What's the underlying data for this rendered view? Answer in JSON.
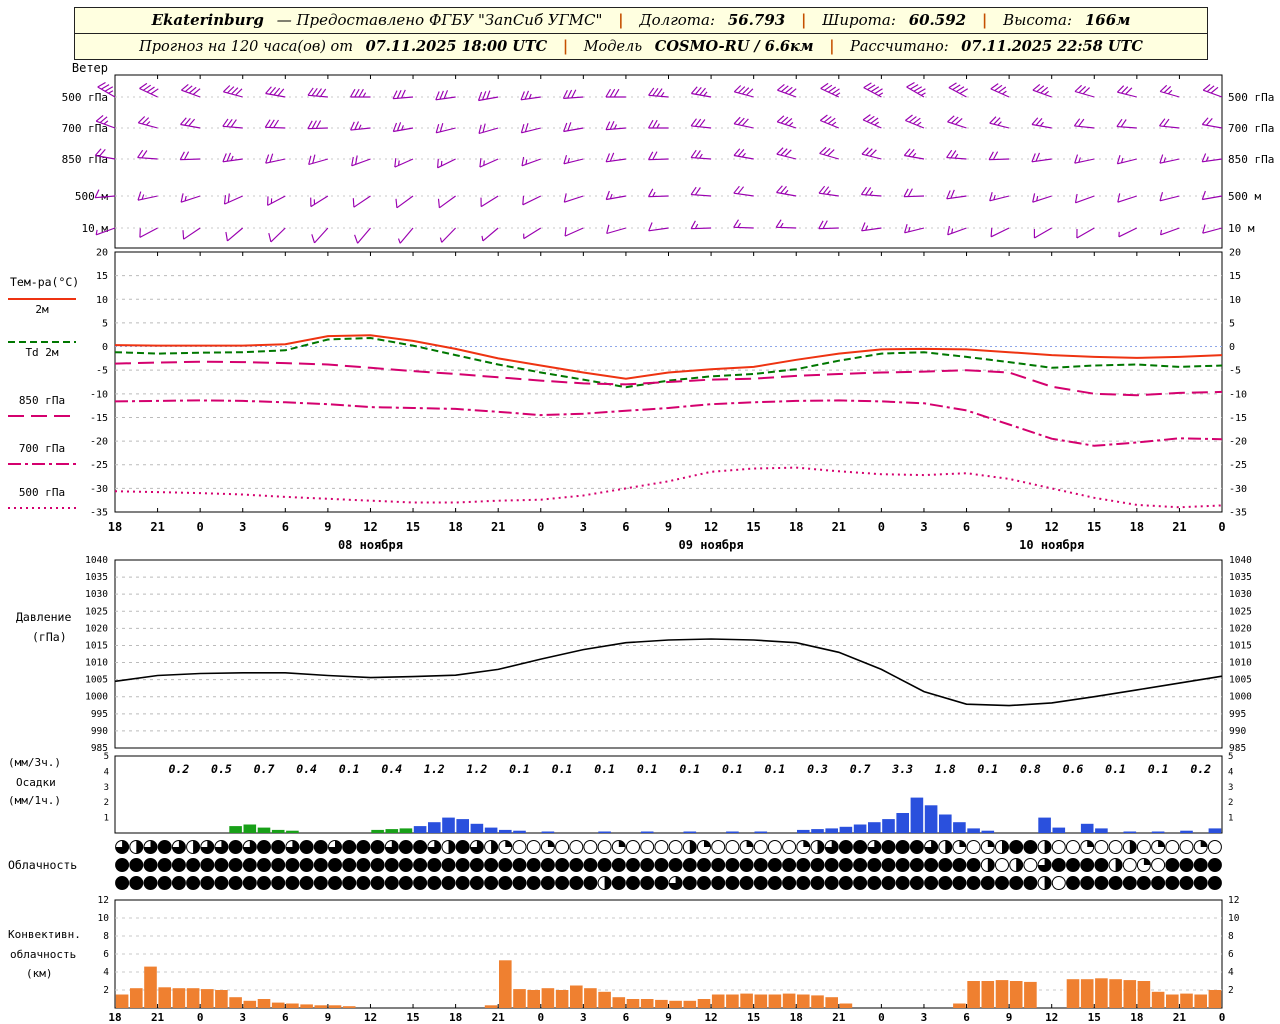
{
  "header": {
    "station": "Ekaterinburg",
    "provider": "— Предоставлено ФГБУ \"ЗапСиб УГМС\"",
    "sep": "|",
    "lon_label": "Долгота:",
    "lon": "56.793",
    "lat_label": "Широта:",
    "lat": "60.592",
    "alt_label": "Высота:",
    "alt": "166м",
    "forecast_label": "Прогноз на 120 часа(ов) от",
    "run_time": "07.11.2025 18:00 UTC",
    "model_label": "Модель",
    "model": "COSMO-RU / 6.6км",
    "calc_label": "Рассчитано:",
    "calc_time": "07.11.2025 22:58 UTC"
  },
  "panels": {
    "wind": {
      "title": "Ветер",
      "levels": [
        "500 гПа",
        "700 гПа",
        "850 гПа",
        "500 м",
        "10 м"
      ]
    },
    "temperature": {
      "title": "Тем-ра(°C)",
      "legend": [
        "2м",
        "Td 2м",
        "850 гПа",
        "700 гПа",
        "500 гПа"
      ]
    },
    "pressure": {
      "title_line1": "Давление",
      "title_line2": "(гПа)"
    },
    "precipitation": {
      "label1": "(мм/3ч.)",
      "label2": "Осадки",
      "label3": "(мм/1ч.)"
    },
    "cloud": {
      "title": "Облачность"
    },
    "convective": {
      "l1": "Конвективн.",
      "l2": "облачность",
      "l3": "(км)"
    }
  },
  "axis": {
    "hours": [
      "18",
      "21",
      "0",
      "3",
      "6",
      "9",
      "12",
      "15",
      "18",
      "21",
      "0",
      "3",
      "6",
      "9",
      "12",
      "15",
      "18",
      "21",
      "0",
      "3",
      "6",
      "9",
      "12",
      "15",
      "18",
      "21",
      "0"
    ],
    "dates": [
      "08 ноября",
      "09 ноября",
      "10 ноября"
    ]
  },
  "chart_data": [
    {
      "type": "wind-barbs",
      "title": "Ветер",
      "time_step_h": 3,
      "levels": [
        {
          "name": "500 гПа",
          "dir": [
            300,
            295,
            290,
            285,
            280,
            275,
            270,
            265,
            262,
            260,
            262,
            266,
            270,
            275,
            280,
            285,
            290,
            295,
            298,
            300,
            298,
            294,
            290,
            286,
            284,
            286,
            290
          ],
          "spd": [
            35,
            38,
            40,
            42,
            40,
            38,
            35,
            32,
            30,
            28,
            27,
            28,
            30,
            33,
            36,
            40,
            42,
            44,
            45,
            43,
            40,
            36,
            33,
            30,
            28,
            27,
            28
          ]
        },
        {
          "name": "700 гПа",
          "dir": [
            290,
            285,
            280,
            275,
            272,
            268,
            264,
            260,
            256,
            254,
            256,
            260,
            265,
            270,
            276,
            282,
            288,
            292,
            294,
            292,
            288,
            284,
            280,
            276,
            274,
            276,
            280
          ],
          "spd": [
            25,
            27,
            30,
            32,
            30,
            28,
            26,
            24,
            22,
            20,
            20,
            22,
            24,
            26,
            29,
            32,
            34,
            36,
            35,
            33,
            30,
            27,
            24,
            22,
            20,
            20,
            22
          ]
        },
        {
          "name": "850 гПа",
          "dir": [
            280,
            274,
            268,
            262,
            258,
            254,
            250,
            246,
            244,
            246,
            250,
            256,
            262,
            268,
            274,
            280,
            284,
            286,
            284,
            280,
            274,
            268,
            262,
            258,
            256,
            258,
            262
          ],
          "spd": [
            18,
            20,
            22,
            24,
            22,
            20,
            18,
            16,
            15,
            14,
            15,
            16,
            18,
            20,
            23,
            26,
            28,
            30,
            28,
            26,
            23,
            20,
            18,
            16,
            15,
            15,
            16
          ]
        },
        {
          "name": "500 м",
          "dir": [
            265,
            258,
            252,
            246,
            242,
            238,
            236,
            234,
            234,
            238,
            244,
            252,
            260,
            268,
            274,
            278,
            280,
            278,
            274,
            268,
            262,
            256,
            252,
            250,
            252,
            256,
            260
          ],
          "spd": [
            12,
            14,
            16,
            18,
            16,
            14,
            12,
            10,
            9,
            9,
            10,
            12,
            14,
            16,
            18,
            21,
            24,
            26,
            24,
            21,
            18,
            15,
            13,
            11,
            10,
            10,
            12
          ]
        },
        {
          "name": "10 м",
          "dir": [
            250,
            242,
            236,
            230,
            226,
            222,
            220,
            220,
            224,
            230,
            238,
            246,
            254,
            262,
            268,
            272,
            272,
            268,
            262,
            256,
            250,
            244,
            240,
            240,
            244,
            250,
            255
          ],
          "spd": [
            7,
            8,
            10,
            11,
            10,
            9,
            8,
            6,
            5,
            5,
            6,
            8,
            9,
            11,
            13,
            15,
            17,
            18,
            17,
            15,
            13,
            11,
            9,
            8,
            7,
            7,
            8
          ]
        }
      ]
    },
    {
      "type": "line",
      "title": "Тем-ра(°C)",
      "ylim": [
        -35,
        20
      ],
      "x_step_h": 3,
      "series": [
        {
          "name": "2м",
          "color": "#ee3311",
          "style": "solid",
          "values": [
            0.3,
            0.2,
            0.2,
            0.2,
            0.5,
            2.2,
            2.4,
            1.2,
            -0.5,
            -2.5,
            -4.0,
            -5.5,
            -6.8,
            -5.5,
            -4.8,
            -4.3,
            -2.8,
            -1.5,
            -0.6,
            -0.5,
            -0.6,
            -1.2,
            -1.8,
            -2.2,
            -2.4,
            -2.2,
            -1.8
          ]
        },
        {
          "name": "Td 2м",
          "color": "#007700",
          "style": "dashed",
          "values": [
            -1.2,
            -1.5,
            -1.3,
            -1.2,
            -0.8,
            1.5,
            1.8,
            0.2,
            -1.8,
            -3.8,
            -5.5,
            -7.0,
            -8.6,
            -7.2,
            -6.3,
            -5.8,
            -4.8,
            -3.0,
            -1.5,
            -1.2,
            -2.2,
            -3.3,
            -4.5,
            -4.0,
            -3.8,
            -4.3,
            -4.0
          ]
        },
        {
          "name": "850 гПа",
          "color": "#d4006e",
          "style": "longdash",
          "values": [
            -3.6,
            -3.4,
            -3.2,
            -3.3,
            -3.5,
            -3.8,
            -4.5,
            -5.2,
            -5.8,
            -6.5,
            -7.2,
            -7.8,
            -8.0,
            -7.5,
            -7.0,
            -6.8,
            -6.2,
            -5.8,
            -5.5,
            -5.3,
            -5.0,
            -5.5,
            -8.5,
            -10.0,
            -10.3,
            -9.8,
            -9.6
          ]
        },
        {
          "name": "700 гПа",
          "color": "#d4006e",
          "style": "dashdot",
          "values": [
            -11.6,
            -11.5,
            -11.4,
            -11.5,
            -11.8,
            -12.2,
            -12.8,
            -13.0,
            -13.2,
            -13.8,
            -14.5,
            -14.2,
            -13.6,
            -13.0,
            -12.2,
            -11.8,
            -11.5,
            -11.4,
            -11.6,
            -12.0,
            -13.5,
            -16.5,
            -19.5,
            -21.0,
            -20.3,
            -19.4,
            -19.6
          ]
        },
        {
          "name": "500 гПа",
          "color": "#d4006e",
          "style": "dotted",
          "values": [
            -30.6,
            -30.8,
            -31.0,
            -31.3,
            -31.8,
            -32.2,
            -32.6,
            -33.0,
            -33.0,
            -32.6,
            -32.4,
            -31.5,
            -30.0,
            -28.5,
            -26.5,
            -25.8,
            -25.6,
            -26.4,
            -27.0,
            -27.2,
            -26.8,
            -28.0,
            -30.0,
            -32.0,
            -33.5,
            -34.0,
            -33.6
          ]
        }
      ]
    },
    {
      "type": "line",
      "title": "Давление (гПа)",
      "ylim": [
        985,
        1040
      ],
      "x_step_h": 3,
      "series": [
        {
          "name": "Давление",
          "color": "#000000",
          "style": "solid",
          "values": [
            1004.5,
            1006.2,
            1006.8,
            1007.0,
            1007.0,
            1006.2,
            1005.6,
            1005.9,
            1006.3,
            1008.0,
            1011.0,
            1013.8,
            1015.8,
            1016.6,
            1016.9,
            1016.6,
            1015.8,
            1013.0,
            1008.0,
            1001.5,
            997.8,
            997.4,
            998.2,
            1000.0,
            1002.0,
            1004.0,
            1006.0
          ]
        }
      ]
    },
    {
      "type": "bar",
      "title": "Осадки",
      "ylim": [
        0,
        5
      ],
      "sums_3h": [
        "",
        "0.2",
        "0.5",
        "0.7",
        "0.4",
        "0.1",
        "0.4",
        "1.2",
        "1.2",
        "0.1",
        "0.1",
        "0.1",
        "0.1",
        "0.1",
        "0.1",
        "0.1",
        "0.3",
        "0.7",
        "3.3",
        "1.8",
        "0.1",
        "0.8",
        "0.6",
        "0.1",
        "0.1",
        "0.2"
      ],
      "colors": {
        "g": "#18a018",
        "b": "#2a50dd"
      },
      "bars_1h": [
        {
          "h": 8,
          "v": 0.45,
          "c": "g"
        },
        {
          "h": 9,
          "v": 0.55,
          "c": "g"
        },
        {
          "h": 10,
          "v": 0.35,
          "c": "g"
        },
        {
          "h": 11,
          "v": 0.2,
          "c": "g"
        },
        {
          "h": 12,
          "v": 0.15,
          "c": "g"
        },
        {
          "h": 18,
          "v": 0.2,
          "c": "g"
        },
        {
          "h": 19,
          "v": 0.25,
          "c": "g"
        },
        {
          "h": 20,
          "v": 0.3,
          "c": "g"
        },
        {
          "h": 21,
          "v": 0.45,
          "c": "b"
        },
        {
          "h": 22,
          "v": 0.7,
          "c": "b"
        },
        {
          "h": 23,
          "v": 1.0,
          "c": "b"
        },
        {
          "h": 24,
          "v": 0.9,
          "c": "b"
        },
        {
          "h": 25,
          "v": 0.6,
          "c": "b"
        },
        {
          "h": 26,
          "v": 0.35,
          "c": "b"
        },
        {
          "h": 27,
          "v": 0.2,
          "c": "b"
        },
        {
          "h": 28,
          "v": 0.15,
          "c": "b"
        },
        {
          "h": 30,
          "v": 0.1,
          "c": "b"
        },
        {
          "h": 34,
          "v": 0.1,
          "c": "b"
        },
        {
          "h": 37,
          "v": 0.1,
          "c": "b"
        },
        {
          "h": 40,
          "v": 0.1,
          "c": "b"
        },
        {
          "h": 43,
          "v": 0.1,
          "c": "b"
        },
        {
          "h": 45,
          "v": 0.1,
          "c": "b"
        },
        {
          "h": 48,
          "v": 0.2,
          "c": "b"
        },
        {
          "h": 49,
          "v": 0.25,
          "c": "b"
        },
        {
          "h": 50,
          "v": 0.3,
          "c": "b"
        },
        {
          "h": 51,
          "v": 0.4,
          "c": "b"
        },
        {
          "h": 52,
          "v": 0.55,
          "c": "b"
        },
        {
          "h": 53,
          "v": 0.7,
          "c": "b"
        },
        {
          "h": 54,
          "v": 0.9,
          "c": "b"
        },
        {
          "h": 55,
          "v": 1.3,
          "c": "b"
        },
        {
          "h": 56,
          "v": 2.3,
          "c": "b"
        },
        {
          "h": 57,
          "v": 1.8,
          "c": "b"
        },
        {
          "h": 58,
          "v": 1.2,
          "c": "b"
        },
        {
          "h": 59,
          "v": 0.7,
          "c": "b"
        },
        {
          "h": 60,
          "v": 0.3,
          "c": "b"
        },
        {
          "h": 61,
          "v": 0.15,
          "c": "b"
        },
        {
          "h": 65,
          "v": 1.0,
          "c": "b"
        },
        {
          "h": 66,
          "v": 0.35,
          "c": "b"
        },
        {
          "h": 68,
          "v": 0.6,
          "c": "b"
        },
        {
          "h": 69,
          "v": 0.3,
          "c": "b"
        },
        {
          "h": 71,
          "v": 0.1,
          "c": "b"
        },
        {
          "h": 73,
          "v": 0.1,
          "c": "b"
        },
        {
          "h": 75,
          "v": 0.15,
          "c": "b"
        },
        {
          "h": 77,
          "v": 0.3,
          "c": "b"
        }
      ]
    },
    {
      "type": "symbol-row",
      "title": "Облачность",
      "scale": "quarters-0-4",
      "rows": [
        "323432334344344344434432432100100001000021001000123443444321012442001002010010",
        "444444444444444444444444444444444444444444444444444444444444420203444420104444",
        "444444444444444444444444444444444424444344444444444444444444444442044444444444"
      ]
    },
    {
      "type": "bar",
      "title": "Конвективная облачность (км)",
      "ylim": [
        0,
        12
      ],
      "color": "#ef8030",
      "values_1h": [
        1.5,
        2.2,
        4.6,
        2.3,
        2.2,
        2.2,
        2.1,
        2.0,
        1.2,
        0.8,
        1.0,
        0.6,
        0.5,
        0.4,
        0.3,
        0.3,
        0.2,
        0,
        0,
        0,
        0,
        0,
        0,
        0,
        0,
        0,
        0.3,
        5.3,
        2.1,
        2.0,
        2.2,
        2.0,
        2.5,
        2.2,
        1.8,
        1.2,
        1.0,
        1.0,
        0.9,
        0.8,
        0.8,
        1.0,
        1.5,
        1.5,
        1.6,
        1.5,
        1.5,
        1.6,
        1.5,
        1.4,
        1.2,
        0.5,
        0,
        0,
        0,
        0,
        0,
        0,
        0,
        0.5,
        3.0,
        3.0,
        3.1,
        3.0,
        2.9,
        0,
        0,
        3.2,
        3.2,
        3.3,
        3.2,
        3.1,
        3.0,
        1.8,
        1.5,
        1.6,
        1.5,
        2.0
      ]
    }
  ]
}
